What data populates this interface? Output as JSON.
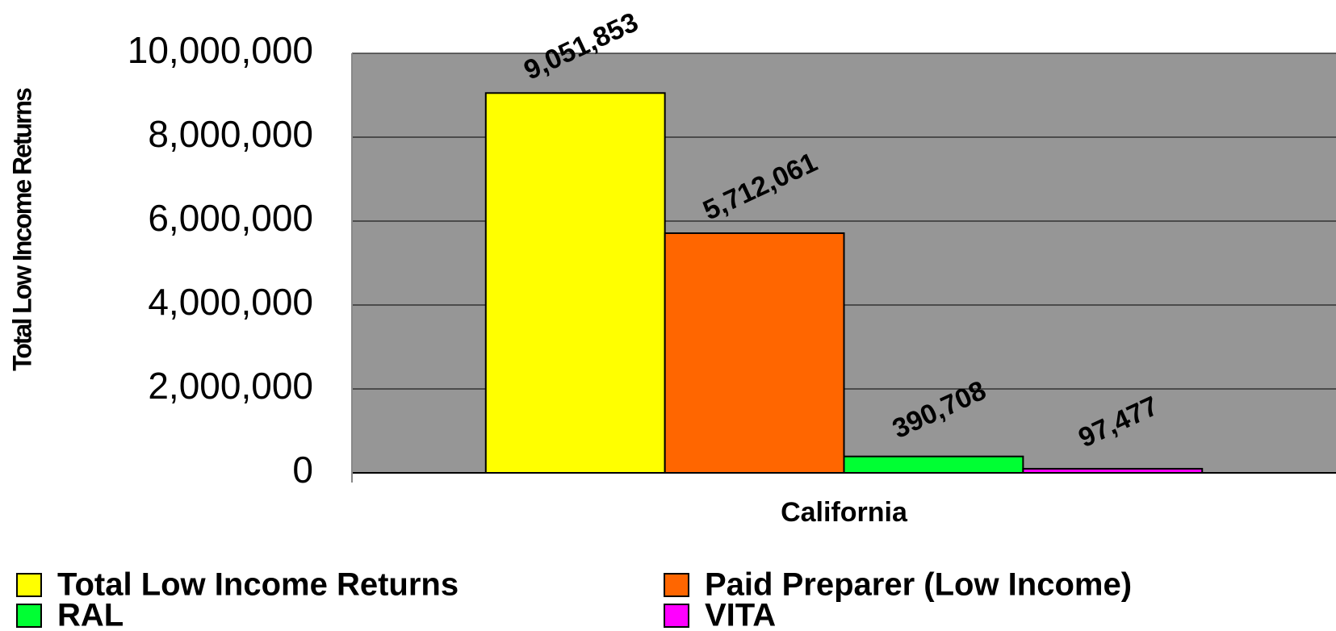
{
  "chart_data": {
    "type": "bar",
    "y_label": "Total Low Income Returns",
    "categories": [
      "California"
    ],
    "series": [
      {
        "name": "Total Low Income Returns",
        "color": "#ffff00",
        "values": [
          9051853
        ],
        "value_labels": [
          "9,051,853"
        ]
      },
      {
        "name": "Paid Preparer (Low Income)",
        "color": "#ff6600",
        "values": [
          5712061
        ],
        "value_labels": [
          "5,712,061"
        ]
      },
      {
        "name": "RAL",
        "color": "#00ff33",
        "values": [
          390708
        ],
        "value_labels": [
          "390,708"
        ]
      },
      {
        "name": "VITA",
        "color": "#ff00ff",
        "values": [
          97477
        ],
        "value_labels": [
          "97,477"
        ]
      }
    ],
    "ylim": [
      0,
      10000000
    ],
    "yticks": [
      {
        "value": 0,
        "label": "0"
      },
      {
        "value": 2000000,
        "label": "2,000,000"
      },
      {
        "value": 4000000,
        "label": "4,000,000"
      },
      {
        "value": 6000000,
        "label": "6,000,000"
      },
      {
        "value": 8000000,
        "label": "8,000,000"
      },
      {
        "value": 10000000,
        "label": "10,000,000"
      }
    ],
    "grid": true,
    "plot_background": "#969696"
  }
}
